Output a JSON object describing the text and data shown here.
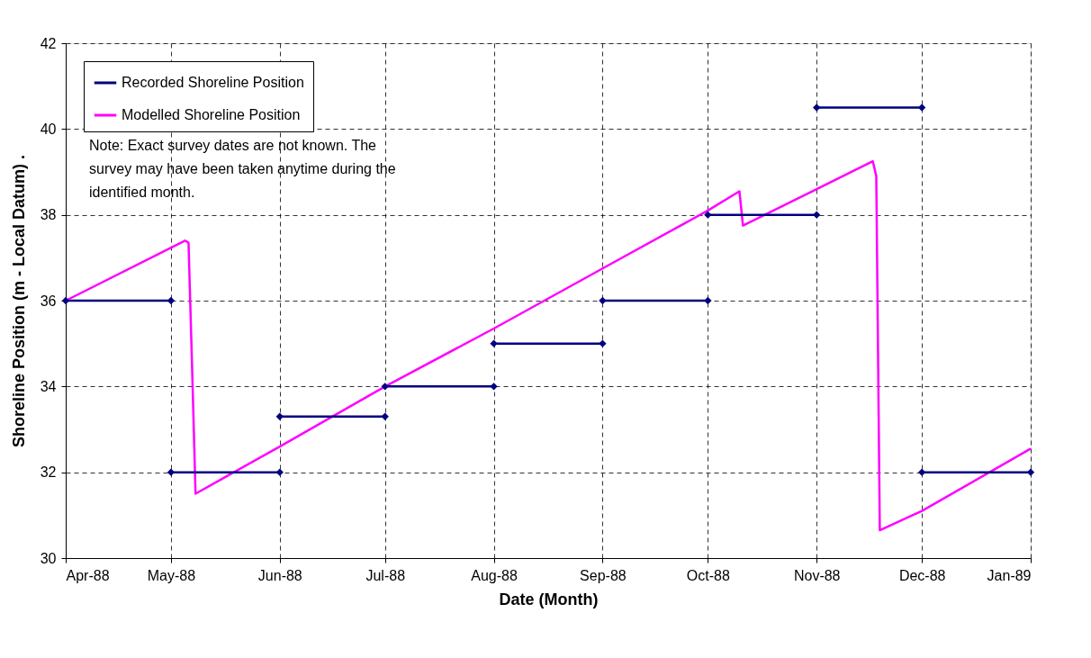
{
  "chart_data": {
    "type": "line",
    "xlabel": "Date (Month)",
    "ylabel": "Shoreline Position (m - Local Datum) .",
    "xlim": [
      "1988-04-01",
      "1989-01-01"
    ],
    "xticks": [
      {
        "value": "1988-04-01",
        "label": "Apr-88"
      },
      {
        "value": "1988-05-01",
        "label": "May-88"
      },
      {
        "value": "1988-06-01",
        "label": "Jun-88"
      },
      {
        "value": "1988-07-01",
        "label": "Jul-88"
      },
      {
        "value": "1988-08-01",
        "label": "Aug-88"
      },
      {
        "value": "1988-09-01",
        "label": "Sep-88"
      },
      {
        "value": "1988-10-01",
        "label": "Oct-88"
      },
      {
        "value": "1988-11-01",
        "label": "Nov-88"
      },
      {
        "value": "1988-12-01",
        "label": "Dec-88"
      },
      {
        "value": "1989-01-01",
        "label": "Jan-89"
      }
    ],
    "ylim": [
      30,
      42
    ],
    "yticks": [
      30,
      32,
      34,
      36,
      38,
      40,
      42
    ],
    "grid": true,
    "legend": "top left",
    "series": [
      {
        "name": "Recorded Shoreline Position",
        "color": "#000080",
        "marker": "diamond",
        "x": [
          "1988-04-01",
          "1988-05-01"
        ],
        "values": [
          36,
          36
        ]
      },
      {
        "name": "Modelled Shoreline Position",
        "color": "#ff00ff",
        "marker": "none",
        "x": [
          "1988-04-01",
          "1988-05-05",
          "1988-05-06",
          "1988-05-07",
          "1988-05-08",
          "1988-06-01",
          "1988-07-01",
          "1988-08-01",
          "1988-09-01",
          "1988-10-01",
          "1988-10-10",
          "1988-10-11",
          "1988-11-01",
          "1988-11-17",
          "1988-11-18",
          "1988-11-19",
          "1988-12-01",
          "1989-01-01"
        ],
        "values": [
          36.0,
          37.4,
          37.35,
          34.5,
          31.5,
          32.6,
          34.0,
          35.35,
          36.75,
          38.1,
          38.55,
          37.75,
          38.6,
          39.25,
          38.9,
          30.65,
          31.1,
          32.55
        ]
      },
      {
        "color": "#000080",
        "marker": "diamond",
        "x": [
          "1988-05-01",
          "1988-06-01"
        ],
        "values": [
          32,
          32
        ]
      },
      {
        "color": "#000080",
        "marker": "diamond",
        "x": [
          "1988-06-01",
          "1988-07-01"
        ],
        "values": [
          33.3,
          33.3
        ]
      },
      {
        "color": "#000080",
        "marker": "diamond",
        "x": [
          "1988-07-01",
          "1988-08-01"
        ],
        "values": [
          34,
          34
        ]
      },
      {
        "color": "#000080",
        "marker": "diamond",
        "x": [
          "1988-08-01",
          "1988-09-01"
        ],
        "values": [
          35,
          35
        ]
      },
      {
        "color": "#000080",
        "marker": "diamond",
        "x": [
          "1988-09-01",
          "1988-10-01"
        ],
        "values": [
          36,
          36
        ]
      },
      {
        "color": "#000080",
        "marker": "diamond",
        "x": [
          "1988-10-01",
          "1988-11-01"
        ],
        "values": [
          38,
          38
        ]
      },
      {
        "color": "#000080",
        "marker": "diamond",
        "x": [
          "1988-11-01",
          "1988-12-01"
        ],
        "values": [
          40.5,
          40.5
        ]
      },
      {
        "color": "#000080",
        "marker": "diamond",
        "x": [
          "1988-12-01",
          "1989-01-01"
        ],
        "values": [
          32,
          32
        ]
      }
    ],
    "annotations": [
      "Note: Exact survey dates are not known. The survey may have been taken anytime during the identified month."
    ]
  }
}
